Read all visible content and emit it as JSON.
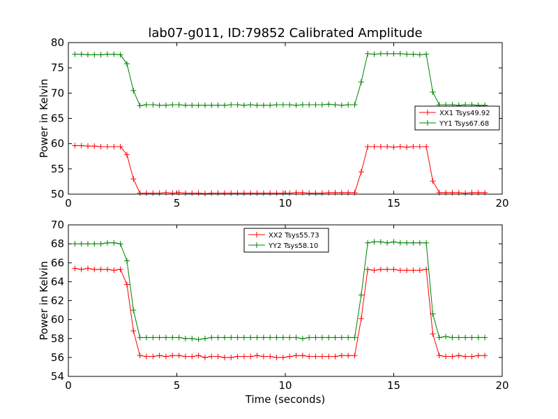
{
  "chart_data": [
    {
      "type": "line",
      "title": "lab07-g011, ID:79852 Calibrated Amplitude",
      "xlabel": "",
      "ylabel": "Power in Kelvin",
      "xlim": [
        0,
        20
      ],
      "ylim": [
        50,
        80
      ],
      "xticks": [
        "0",
        "5",
        "10",
        "15",
        "20"
      ],
      "yticks": [
        "50",
        "55",
        "60",
        "65",
        "70",
        "75",
        "80"
      ],
      "legend_position": "center-right",
      "x": [
        0.3,
        0.6,
        0.9,
        1.2,
        1.5,
        1.8,
        2.1,
        2.4,
        2.7,
        3.0,
        3.3,
        3.6,
        3.9,
        4.2,
        4.5,
        4.8,
        5.1,
        5.4,
        5.7,
        6.0,
        6.3,
        6.6,
        6.9,
        7.2,
        7.5,
        7.8,
        8.1,
        8.4,
        8.7,
        9.0,
        9.3,
        9.6,
        9.9,
        10.2,
        10.5,
        10.8,
        11.1,
        11.4,
        11.7,
        12.0,
        12.3,
        12.6,
        12.9,
        13.2,
        13.5,
        13.8,
        14.1,
        14.4,
        14.7,
        15.0,
        15.3,
        15.6,
        15.9,
        16.2,
        16.5,
        16.8,
        17.1,
        17.4,
        17.7,
        18.0,
        18.3,
        18.6,
        18.9,
        19.2
      ],
      "series": [
        {
          "name": "XX1 Tsys49.92",
          "color": "#ff0000",
          "values": [
            59.6,
            59.6,
            59.5,
            59.5,
            59.4,
            59.4,
            59.4,
            59.4,
            57.8,
            53.0,
            50.2,
            50.2,
            50.2,
            50.2,
            50.3,
            50.2,
            50.3,
            50.2,
            50.2,
            50.2,
            50.1,
            50.2,
            50.2,
            50.2,
            50.2,
            50.2,
            50.2,
            50.2,
            50.2,
            50.2,
            50.2,
            50.2,
            50.2,
            50.2,
            50.3,
            50.3,
            50.2,
            50.2,
            50.2,
            50.3,
            50.3,
            50.3,
            50.3,
            50.3,
            54.4,
            59.4,
            59.4,
            59.4,
            59.4,
            59.3,
            59.4,
            59.3,
            59.4,
            59.4,
            59.4,
            52.6,
            50.3,
            50.3,
            50.3,
            50.3,
            50.2,
            50.3,
            50.3,
            50.3
          ]
        },
        {
          "name": "YY1 Tsys67.68",
          "color": "#008000",
          "values": [
            77.7,
            77.7,
            77.6,
            77.6,
            77.6,
            77.7,
            77.7,
            77.6,
            75.8,
            70.5,
            67.5,
            67.7,
            67.7,
            67.6,
            67.6,
            67.7,
            67.7,
            67.6,
            67.6,
            67.6,
            67.6,
            67.6,
            67.6,
            67.6,
            67.7,
            67.7,
            67.6,
            67.7,
            67.6,
            67.6,
            67.6,
            67.7,
            67.7,
            67.7,
            67.6,
            67.7,
            67.7,
            67.7,
            67.7,
            67.8,
            67.7,
            67.6,
            67.7,
            67.7,
            72.2,
            77.8,
            77.7,
            77.8,
            77.8,
            77.8,
            77.8,
            77.7,
            77.7,
            77.6,
            77.7,
            70.2,
            67.7,
            67.7,
            67.7,
            67.6,
            67.7,
            67.7,
            67.6,
            67.6
          ]
        }
      ]
    },
    {
      "type": "line",
      "title": "",
      "xlabel": "Time (seconds)",
      "ylabel": "Power in Kelvin",
      "xlim": [
        0,
        20
      ],
      "ylim": [
        54,
        70
      ],
      "xticks": [
        "0",
        "5",
        "10",
        "15",
        "20"
      ],
      "yticks": [
        "54",
        "56",
        "58",
        "60",
        "62",
        "64",
        "66",
        "68",
        "70"
      ],
      "legend_position": "top-center",
      "x": [
        0.3,
        0.6,
        0.9,
        1.2,
        1.5,
        1.8,
        2.1,
        2.4,
        2.7,
        3.0,
        3.3,
        3.6,
        3.9,
        4.2,
        4.5,
        4.8,
        5.1,
        5.4,
        5.7,
        6.0,
        6.3,
        6.6,
        6.9,
        7.2,
        7.5,
        7.8,
        8.1,
        8.4,
        8.7,
        9.0,
        9.3,
        9.6,
        9.9,
        10.2,
        10.5,
        10.8,
        11.1,
        11.4,
        11.7,
        12.0,
        12.3,
        12.6,
        12.9,
        13.2,
        13.5,
        13.8,
        14.1,
        14.4,
        14.7,
        15.0,
        15.3,
        15.6,
        15.9,
        16.2,
        16.5,
        16.8,
        17.1,
        17.4,
        17.7,
        18.0,
        18.3,
        18.6,
        18.9,
        19.2
      ],
      "series": [
        {
          "name": "XX2 Tsys55.73",
          "color": "#ff0000",
          "values": [
            65.4,
            65.3,
            65.4,
            65.3,
            65.3,
            65.3,
            65.2,
            65.3,
            63.7,
            58.8,
            56.2,
            56.1,
            56.1,
            56.2,
            56.1,
            56.2,
            56.2,
            56.1,
            56.1,
            56.2,
            56.0,
            56.1,
            56.1,
            56.0,
            56.0,
            56.1,
            56.1,
            56.1,
            56.2,
            56.1,
            56.1,
            56.0,
            56.0,
            56.1,
            56.2,
            56.2,
            56.1,
            56.1,
            56.1,
            56.1,
            56.1,
            56.2,
            56.2,
            56.2,
            60.1,
            65.3,
            65.2,
            65.3,
            65.3,
            65.3,
            65.2,
            65.2,
            65.2,
            65.2,
            65.3,
            58.5,
            56.2,
            56.1,
            56.1,
            56.2,
            56.1,
            56.1,
            56.2,
            56.2
          ]
        },
        {
          "name": "YY2 Tsys58.10",
          "color": "#008000",
          "values": [
            68.0,
            68.0,
            68.0,
            68.0,
            68.0,
            68.1,
            68.1,
            68.0,
            66.2,
            61.0,
            58.1,
            58.1,
            58.1,
            58.1,
            58.1,
            58.1,
            58.1,
            58.0,
            58.0,
            57.9,
            58.0,
            58.1,
            58.1,
            58.1,
            58.1,
            58.1,
            58.1,
            58.1,
            58.1,
            58.1,
            58.1,
            58.1,
            58.1,
            58.1,
            58.1,
            58.0,
            58.1,
            58.1,
            58.1,
            58.1,
            58.1,
            58.1,
            58.1,
            58.1,
            62.6,
            68.1,
            68.2,
            68.2,
            68.1,
            68.2,
            68.1,
            68.1,
            68.1,
            68.1,
            68.1,
            60.6,
            58.1,
            58.2,
            58.1,
            58.1,
            58.1,
            58.1,
            58.1,
            58.1
          ]
        }
      ]
    }
  ]
}
